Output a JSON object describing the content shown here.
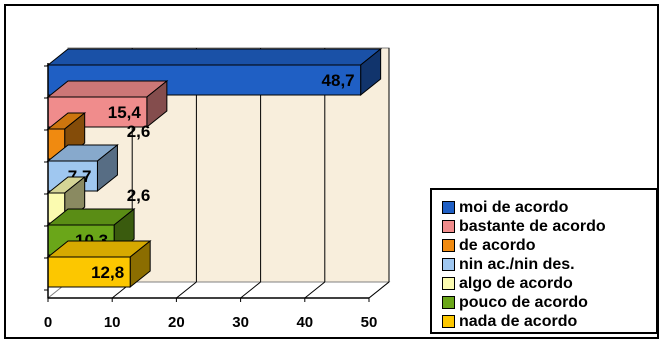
{
  "chart_data": {
    "type": "bar",
    "orientation": "horizontal",
    "three_d": true,
    "xlim": [
      0,
      50
    ],
    "xticks": [
      "0",
      "10",
      "20",
      "30",
      "40",
      "50"
    ],
    "grid": true,
    "legend_position": "bottom-right",
    "series": [
      {
        "name": "moi de acordo",
        "value": 48.7,
        "label": "48,7",
        "color": "#1f5fc4"
      },
      {
        "name": "bastante de acordo",
        "value": 15.4,
        "label": "15,4",
        "color": "#f08c8c"
      },
      {
        "name": "de acordo",
        "value": 2.6,
        "label": "2,6",
        "color": "#f08a10"
      },
      {
        "name": "nin ac./nin des.",
        "value": 7.7,
        "label": "7,7",
        "color": "#9fc7f0"
      },
      {
        "name": "algo de acordo",
        "value": 2.6,
        "label": "2,6",
        "color": "#fbfbb0"
      },
      {
        "name": "pouco de acordo",
        "value": 10.3,
        "label": "10,3",
        "color": "#6aa619"
      },
      {
        "name": "nada de acordo",
        "value": 12.8,
        "label": "12,8",
        "color": "#fcc700"
      }
    ],
    "plot_background": "#f8eedc"
  }
}
